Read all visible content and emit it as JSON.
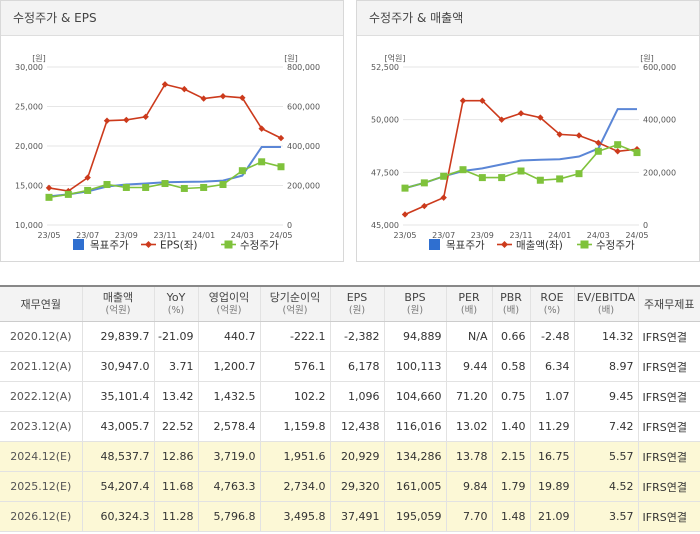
{
  "panel_left": {
    "title": "수정주가 & EPS"
  },
  "panel_right": {
    "title": "수정주가 & 매출액"
  },
  "chart_data": [
    {
      "type": "line",
      "title": "수정주가 & EPS",
      "left_unit": "[원]",
      "right_unit": "[원]",
      "x_ticks": [
        "23/05",
        "23/07",
        "23/09",
        "23/11",
        "24/01",
        "24/03",
        "24/05"
      ],
      "y_left_ticks": [
        "10,000",
        "15,000",
        "20,000",
        "25,000",
        "30,000"
      ],
      "y_right_ticks": [
        "0",
        "200,000",
        "400,000",
        "600,000",
        "800,000"
      ],
      "y_left_range": [
        10000,
        30000
      ],
      "y_right_range": [
        0,
        800000
      ],
      "legend": [
        "목표주가",
        "EPS(좌)",
        "수정주가"
      ],
      "series": [
        {
          "name": "목표주가",
          "axis": "right",
          "color": "#5b86d6",
          "style": "line",
          "x": [
            0,
            1,
            2,
            3,
            4,
            5,
            6,
            7,
            8,
            9,
            10,
            11,
            12
          ],
          "values": [
            145000,
            155000,
            170000,
            195000,
            205000,
            210000,
            216000,
            218000,
            220000,
            225000,
            250000,
            395000,
            395000
          ]
        },
        {
          "name": "EPS(좌)",
          "axis": "left",
          "color": "#cc3a1c",
          "style": "line-diamond",
          "x": [
            0,
            1,
            2,
            3,
            4,
            5,
            6,
            7,
            8,
            9,
            10,
            11,
            12
          ],
          "values": [
            14700,
            14300,
            16000,
            23200,
            23300,
            23700,
            27800,
            27200,
            26000,
            26300,
            26100,
            22200,
            21000
          ]
        },
        {
          "name": "수정주가",
          "axis": "right",
          "color": "#7fc23b",
          "style": "line-square",
          "x": [
            0,
            1,
            2,
            3,
            4,
            5,
            6,
            7,
            8,
            9,
            10,
            11,
            12
          ],
          "values": [
            140000,
            155000,
            175000,
            205000,
            190000,
            190000,
            210000,
            185000,
            190000,
            205000,
            275000,
            320000,
            295000
          ]
        }
      ]
    },
    {
      "type": "line",
      "title": "수정주가 & 매출액",
      "left_unit": "[억원]",
      "right_unit": "[원]",
      "x_ticks": [
        "23/05",
        "23/07",
        "23/09",
        "23/11",
        "24/01",
        "24/03",
        "24/05"
      ],
      "y_left_ticks": [
        "45,000",
        "47,500",
        "50,000",
        "52,500"
      ],
      "y_right_ticks": [
        "0",
        "200,000",
        "400,000",
        "600,000"
      ],
      "y_left_range": [
        45000,
        52500
      ],
      "y_right_range": [
        0,
        600000
      ],
      "legend": [
        "목표주가",
        "매출액(좌)",
        "수정주가"
      ],
      "series": [
        {
          "name": "목표주가",
          "axis": "right",
          "color": "#5b86d6",
          "style": "line",
          "x": [
            0,
            1,
            2,
            3,
            4,
            5,
            6,
            7,
            8,
            9,
            10,
            11,
            12
          ],
          "values": [
            140000,
            160000,
            185000,
            205000,
            215000,
            230000,
            245000,
            248000,
            250000,
            260000,
            290000,
            440000,
            440000
          ]
        },
        {
          "name": "매출액(좌)",
          "axis": "left",
          "color": "#cc3a1c",
          "style": "line-diamond",
          "x": [
            0,
            1,
            2,
            3,
            4,
            5,
            6,
            7,
            8,
            9,
            10,
            11,
            12
          ],
          "values": [
            45500,
            45900,
            46300,
            50900,
            50900,
            50000,
            50300,
            50100,
            49300,
            49250,
            48900,
            48500,
            48600
          ]
        },
        {
          "name": "수정주가",
          "axis": "right",
          "color": "#7fc23b",
          "style": "line-square",
          "x": [
            0,
            1,
            2,
            3,
            4,
            5,
            6,
            7,
            8,
            9,
            10,
            11,
            12
          ],
          "values": [
            140000,
            160000,
            185000,
            210000,
            180000,
            180000,
            205000,
            170000,
            175000,
            195000,
            280000,
            305000,
            275000
          ]
        }
      ]
    }
  ],
  "table": {
    "headers": [
      {
        "label": "재무연월",
        "unit": ""
      },
      {
        "label": "매출액",
        "unit": "(억원)"
      },
      {
        "label": "YoY",
        "unit": "(%)"
      },
      {
        "label": "영업이익",
        "unit": "(억원)"
      },
      {
        "label": "당기순이익",
        "unit": "(억원)"
      },
      {
        "label": "EPS",
        "unit": "(원)"
      },
      {
        "label": "BPS",
        "unit": "(원)"
      },
      {
        "label": "PER",
        "unit": "(배)"
      },
      {
        "label": "PBR",
        "unit": "(배)"
      },
      {
        "label": "ROE",
        "unit": "(%)"
      },
      {
        "label": "EV/EBITDA",
        "unit": "(배)"
      },
      {
        "label": "주재무제표",
        "unit": ""
      }
    ],
    "rows": [
      {
        "estimate": false,
        "cells": [
          "2020.12(A)",
          "29,839.7",
          "-21.09",
          "440.7",
          "-222.1",
          "-2,382",
          "94,889",
          "N/A",
          "0.66",
          "-2.48",
          "14.32",
          "IFRS연결"
        ]
      },
      {
        "estimate": false,
        "cells": [
          "2021.12(A)",
          "30,947.0",
          "3.71",
          "1,200.7",
          "576.1",
          "6,178",
          "100,113",
          "9.44",
          "0.58",
          "6.34",
          "8.97",
          "IFRS연결"
        ]
      },
      {
        "estimate": false,
        "cells": [
          "2022.12(A)",
          "35,101.4",
          "13.42",
          "1,432.5",
          "102.2",
          "1,096",
          "104,660",
          "71.20",
          "0.75",
          "1.07",
          "9.45",
          "IFRS연결"
        ]
      },
      {
        "estimate": false,
        "cells": [
          "2023.12(A)",
          "43,005.7",
          "22.52",
          "2,578.4",
          "1,159.8",
          "12,438",
          "116,016",
          "13.02",
          "1.40",
          "11.29",
          "7.42",
          "IFRS연결"
        ]
      },
      {
        "estimate": true,
        "cells": [
          "2024.12(E)",
          "48,537.7",
          "12.86",
          "3,719.0",
          "1,951.6",
          "20,929",
          "134,286",
          "13.78",
          "2.15",
          "16.75",
          "5.57",
          "IFRS연결"
        ]
      },
      {
        "estimate": true,
        "cells": [
          "2025.12(E)",
          "54,207.4",
          "11.68",
          "4,763.3",
          "2,734.0",
          "29,320",
          "161,005",
          "9.84",
          "1.79",
          "19.89",
          "4.52",
          "IFRS연결"
        ]
      },
      {
        "estimate": true,
        "cells": [
          "2026.12(E)",
          "60,324.3",
          "11.28",
          "5,796.8",
          "3,495.8",
          "37,491",
          "195,059",
          "7.70",
          "1.48",
          "21.09",
          "3.57",
          "IFRS연결"
        ]
      }
    ]
  }
}
